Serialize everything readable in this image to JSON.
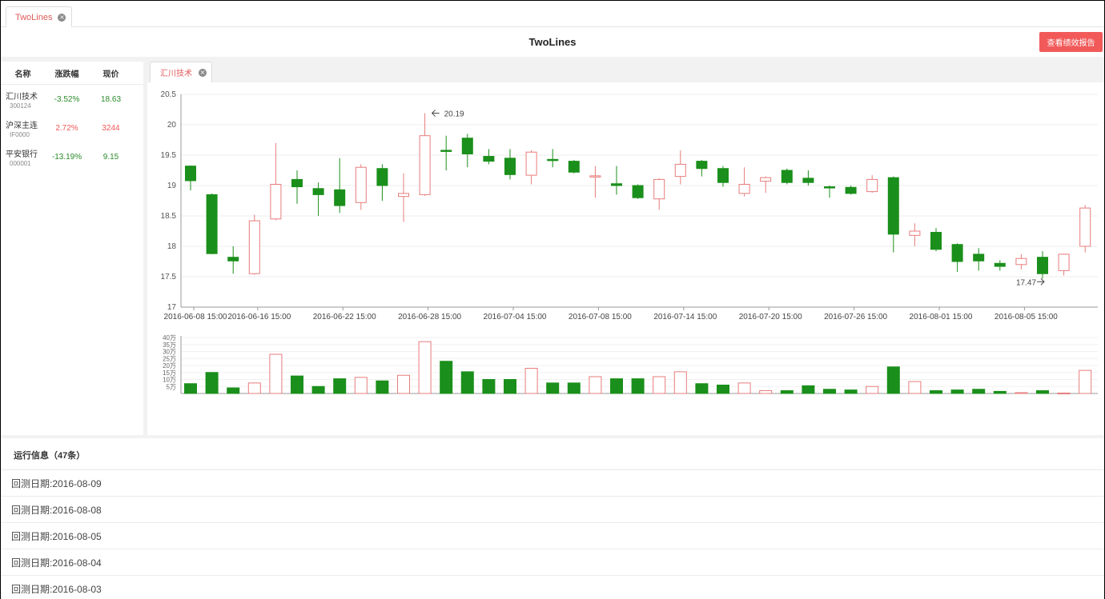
{
  "top_tab": {
    "label": "TwoLines",
    "close": "×"
  },
  "header": {
    "title": "TwoLines",
    "report_button": "查看绩效报告"
  },
  "watchlist": {
    "columns": [
      "名称",
      "涨跌幅",
      "现价"
    ],
    "rows": [
      {
        "name": "汇川技术",
        "code": "300124",
        "change": "-3.52%",
        "price": "18.63",
        "trend": "down"
      },
      {
        "name": "沪深主连",
        "code": "IF0000",
        "change": "2.72%",
        "price": "3244",
        "trend": "up"
      },
      {
        "name": "平安银行",
        "code": "000001",
        "change": "-13.19%",
        "price": "9.15",
        "trend": "down"
      }
    ]
  },
  "chart_tab": {
    "label": "汇川技术",
    "close": "×"
  },
  "colors": {
    "up": "#e87c7c",
    "down": "#1b8f1b",
    "accent": "#f25a5a"
  },
  "chart_data": {
    "type": "candlestick",
    "price_axis": {
      "ylim": [
        17,
        20.5
      ],
      "ticks": [
        "17",
        "17.5",
        "18",
        "18.5",
        "19",
        "19.5",
        "20",
        "20.5"
      ]
    },
    "x_tick_labels": [
      "2016-06-08 15:00",
      "2016-06-16 15:00",
      "2016-06-22 15:00",
      "2016-06-28 15:00",
      "2016-07-04 15:00",
      "2016-07-08 15:00",
      "2016-07-14 15:00",
      "2016-07-20 15:00",
      "2016-07-26 15:00",
      "2016-08-01 15:00",
      "2016-08-05 15:00"
    ],
    "x_tick_index": [
      0,
      3,
      7,
      11,
      15,
      19,
      23,
      27,
      31,
      35,
      39
    ],
    "annotations": [
      {
        "text": "20.19",
        "index": 11,
        "value": 20.19
      },
      {
        "text": "17.47",
        "index": 40,
        "value": 17.47
      }
    ],
    "candles": [
      {
        "o": 19.32,
        "c": 19.08,
        "h": 19.33,
        "l": 18.92
      },
      {
        "o": 18.85,
        "c": 17.88,
        "h": 18.87,
        "l": 17.87
      },
      {
        "o": 17.82,
        "c": 17.76,
        "h": 18.0,
        "l": 17.55
      },
      {
        "o": 17.55,
        "c": 18.42,
        "h": 18.52,
        "l": 17.53
      },
      {
        "o": 18.45,
        "c": 19.02,
        "h": 19.7,
        "l": 18.43
      },
      {
        "o": 19.1,
        "c": 18.98,
        "h": 19.25,
        "l": 18.7
      },
      {
        "o": 18.95,
        "c": 18.85,
        "h": 19.05,
        "l": 18.5
      },
      {
        "o": 18.93,
        "c": 18.67,
        "h": 19.45,
        "l": 18.55
      },
      {
        "o": 18.72,
        "c": 19.3,
        "h": 19.35,
        "l": 18.6
      },
      {
        "o": 19.28,
        "c": 19.0,
        "h": 19.35,
        "l": 18.75
      },
      {
        "o": 18.82,
        "c": 18.87,
        "h": 19.2,
        "l": 18.4
      },
      {
        "o": 18.85,
        "c": 19.82,
        "h": 20.19,
        "l": 18.83
      },
      {
        "o": 19.58,
        "c": 19.57,
        "h": 19.82,
        "l": 19.25
      },
      {
        "o": 19.78,
        "c": 19.52,
        "h": 19.85,
        "l": 19.3
      },
      {
        "o": 19.48,
        "c": 19.4,
        "h": 19.6,
        "l": 19.35
      },
      {
        "o": 19.45,
        "c": 19.18,
        "h": 19.6,
        "l": 19.1
      },
      {
        "o": 19.17,
        "c": 19.55,
        "h": 19.58,
        "l": 19.02
      },
      {
        "o": 19.43,
        "c": 19.42,
        "h": 19.6,
        "l": 19.3
      },
      {
        "o": 19.4,
        "c": 19.22,
        "h": 19.42,
        "l": 19.2
      },
      {
        "o": 19.15,
        "c": 19.16,
        "h": 19.32,
        "l": 18.8
      },
      {
        "o": 19.03,
        "c": 19.0,
        "h": 19.32,
        "l": 18.85
      },
      {
        "o": 19.0,
        "c": 18.8,
        "h": 19.02,
        "l": 18.78
      },
      {
        "o": 18.78,
        "c": 19.1,
        "h": 19.12,
        "l": 18.6
      },
      {
        "o": 19.15,
        "c": 19.35,
        "h": 19.58,
        "l": 19.02
      },
      {
        "o": 19.4,
        "c": 19.28,
        "h": 19.42,
        "l": 19.15
      },
      {
        "o": 19.28,
        "c": 19.05,
        "h": 19.32,
        "l": 18.98
      },
      {
        "o": 18.87,
        "c": 19.02,
        "h": 19.3,
        "l": 18.82
      },
      {
        "o": 19.07,
        "c": 19.13,
        "h": 19.15,
        "l": 18.88
      },
      {
        "o": 19.25,
        "c": 19.05,
        "h": 19.28,
        "l": 19.02
      },
      {
        "o": 19.12,
        "c": 19.05,
        "h": 19.25,
        "l": 19.0
      },
      {
        "o": 18.98,
        "c": 18.97,
        "h": 19.0,
        "l": 18.8
      },
      {
        "o": 18.97,
        "c": 18.87,
        "h": 19.0,
        "l": 18.85
      },
      {
        "o": 18.9,
        "c": 19.1,
        "h": 19.17,
        "l": 18.88
      },
      {
        "o": 19.13,
        "c": 18.2,
        "h": 19.15,
        "l": 17.9
      },
      {
        "o": 18.18,
        "c": 18.25,
        "h": 18.38,
        "l": 18.0
      },
      {
        "o": 18.23,
        "c": 17.95,
        "h": 18.3,
        "l": 17.92
      },
      {
        "o": 18.03,
        "c": 17.75,
        "h": 18.05,
        "l": 17.58
      },
      {
        "o": 17.87,
        "c": 17.76,
        "h": 17.97,
        "l": 17.6
      },
      {
        "o": 17.72,
        "c": 17.67,
        "h": 17.77,
        "l": 17.6
      },
      {
        "o": 17.7,
        "c": 17.8,
        "h": 17.87,
        "l": 17.62
      },
      {
        "o": 17.82,
        "c": 17.55,
        "h": 17.92,
        "l": 17.47
      },
      {
        "o": 17.6,
        "c": 17.87,
        "h": 17.88,
        "l": 17.52
      },
      {
        "o": 18.0,
        "c": 18.63,
        "h": 18.68,
        "l": 17.9
      }
    ],
    "volume_axis": {
      "ticks": [
        "5万",
        "10万",
        "15万",
        "20万",
        "25万",
        "30万",
        "35万",
        "40万"
      ],
      "ylim": [
        0,
        40
      ]
    },
    "volumes": [
      7,
      15,
      4,
      7.5,
      28,
      12.5,
      5,
      10.5,
      11.5,
      9,
      13,
      37,
      23,
      15.5,
      10,
      10,
      18,
      7.5,
      7.5,
      12,
      10.5,
      10.5,
      12,
      15.5,
      7,
      6,
      7.5,
      2,
      2,
      5.5,
      3,
      2.5,
      5,
      19,
      8.5,
      2,
      2.5,
      3,
      1.5,
      0.6,
      2,
      0.3,
      16.5
    ]
  },
  "log": {
    "header": "运行信息（47条）",
    "rows": [
      "回测日期:2016-08-09",
      "回测日期:2016-08-08",
      "回测日期:2016-08-05",
      "回测日期:2016-08-04",
      "回测日期:2016-08-03"
    ]
  }
}
